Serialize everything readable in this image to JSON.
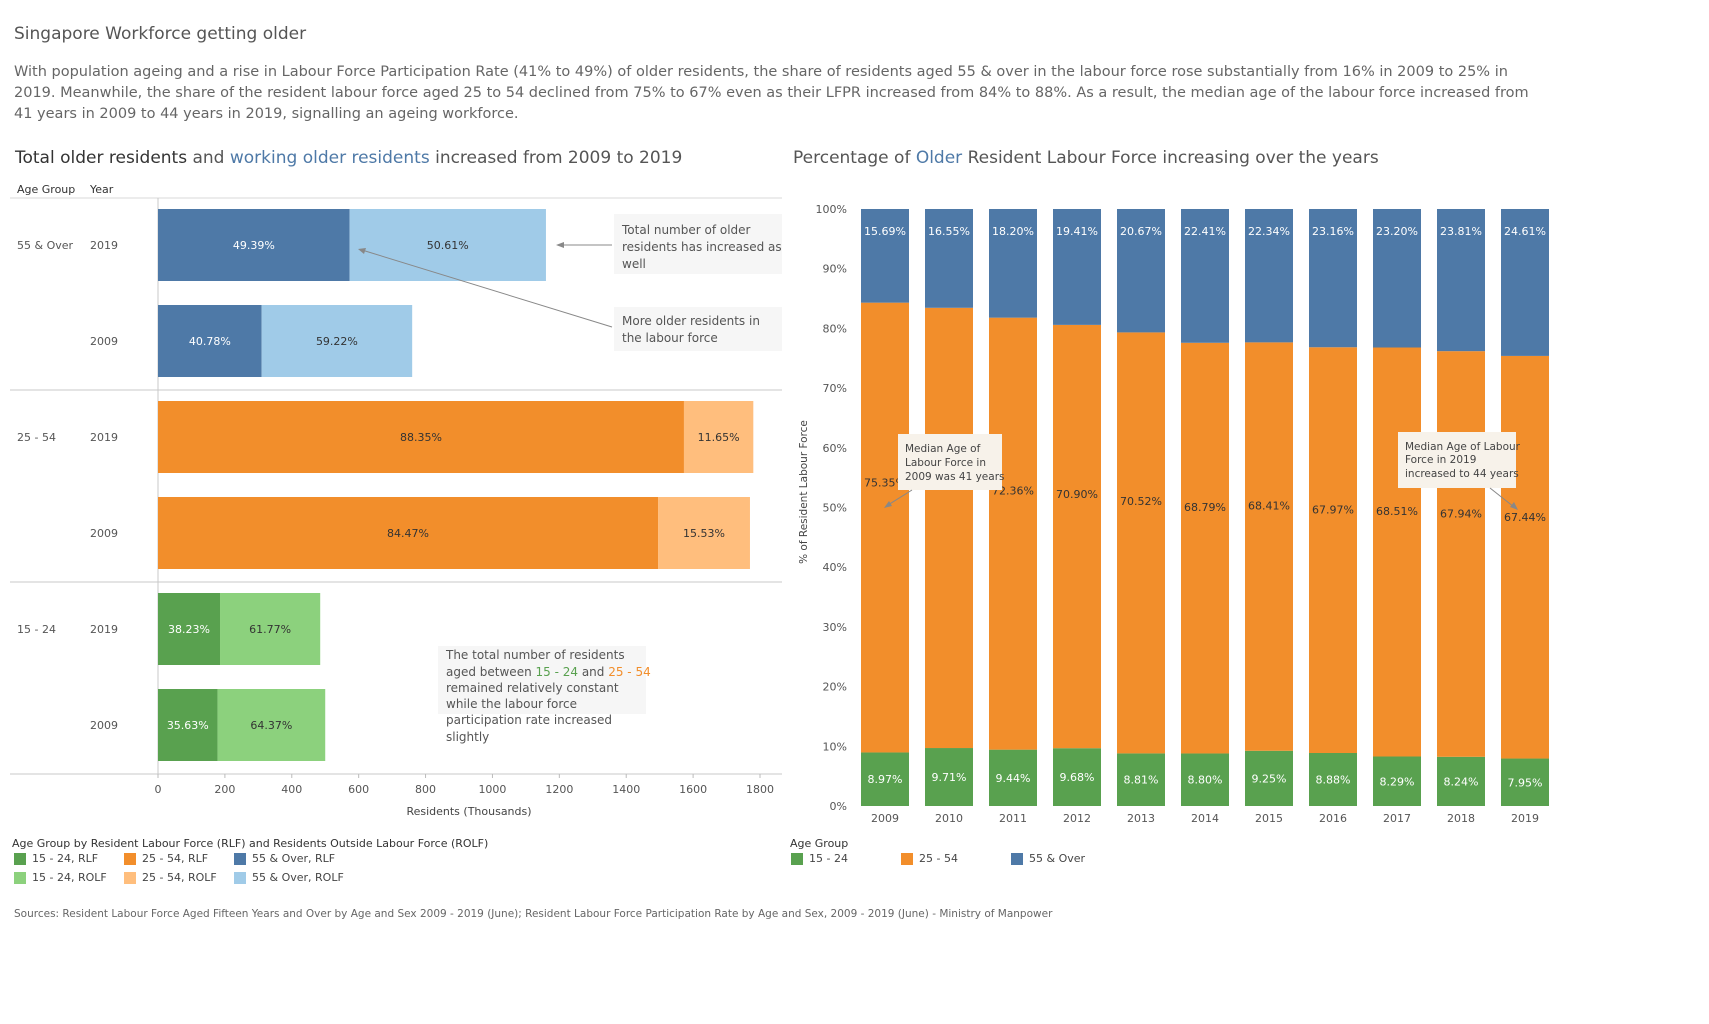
{
  "title": "Singapore Workforce getting older",
  "description": "With population ageing and a rise in Labour Force Participation Rate (41% to 49%) of older residents, the share of residents aged 55 & over in the labour force rose substantially from 16% in 2009 to 25% in 2019. Meanwhile, the share of the resident labour force aged 25 to 54 declined from 75% to 67% even as their LFPR increased from 84% to 88%. As a result, the median age of the labour force increased from 41 years in 2009 to 44 years in 2019, signalling an ageing workforce.",
  "left_title": {
    "part1": "Total older residents",
    "part2": " and ",
    "part3": "working older residents",
    "part4": " increased from 2009 to 2019"
  },
  "right_title": {
    "part1": "Percentage of ",
    "part2": "Older",
    "part3": " Resident Labour Force increasing over the years"
  },
  "column_headers": {
    "age_group": "Age Group",
    "year": "Year"
  },
  "annotations": {
    "total_older": "Total number of older residents has increased as well",
    "more_older": "More older residents in the labour force",
    "constant_line1": "The total number of residents",
    "constant_prefix": "aged between ",
    "constant_g1": "15 - 24",
    "constant_and": " and ",
    "constant_g2": "25 - 54",
    "constant_line3": "remained relatively constant",
    "constant_line4": "while the labour force",
    "constant_line5": "participation rate increased",
    "constant_line6": "slightly",
    "median_2009": "Median Age of Labour Force in 2009 was 41 years",
    "median_2019": "Median Age of Labour Force in 2019 increased to 44 years"
  },
  "left_legend": {
    "title": "Age Group by Resident Labour Force (RLF) and Residents Outside Labour Force (ROLF)",
    "items": [
      "15 - 24, RLF",
      "25 - 54, RLF",
      "55 & Over, RLF",
      "15 - 24, ROLF",
      "25 - 54, ROLF",
      "55 & Over, ROLF"
    ]
  },
  "right_legend": {
    "title": "Age Group",
    "items": [
      "15 - 24",
      "25 - 54",
      "55 & Over"
    ]
  },
  "sources": "Sources: Resident Labour Force Aged Fifteen Years and Over by Age and Sex 2009 - 2019 (June); Resident Labour Force Participation Rate by Age and Sex, 2009 - 2019 (June) - Ministry of Manpower",
  "colors": {
    "g15_rlf": "#59a14f",
    "g15_rolf": "#8cd17d",
    "g25_rlf": "#f28e2b",
    "g25_rolf": "#ffbe7d",
    "g55_rlf": "#4e79a7",
    "g55_rolf": "#a0cbe8"
  },
  "chart_data": [
    {
      "type": "bar",
      "orientation": "horizontal",
      "stacked": true,
      "xlabel": "Residents (Thousands)",
      "xlim": [
        0,
        1800
      ],
      "xticks": [
        0,
        200,
        400,
        600,
        800,
        1000,
        1200,
        1400,
        1600,
        1800
      ],
      "rows": [
        {
          "group": "55 & Over",
          "year": "2019",
          "total": 1160,
          "rlf_pct": 49.39,
          "rolf_pct": 50.61,
          "rlf_label": "49.39%",
          "rolf_label": "50.61%"
        },
        {
          "group": "55 & Over",
          "year": "2009",
          "total": 760,
          "rlf_pct": 40.78,
          "rolf_pct": 59.22,
          "rlf_label": "40.78%",
          "rolf_label": "59.22%"
        },
        {
          "group": "25 - 54",
          "year": "2019",
          "total": 1780,
          "rlf_pct": 88.35,
          "rolf_pct": 11.65,
          "rlf_label": "88.35%",
          "rolf_label": "11.65%"
        },
        {
          "group": "25 - 54",
          "year": "2009",
          "total": 1770,
          "rlf_pct": 84.47,
          "rolf_pct": 15.53,
          "rlf_label": "84.47%",
          "rolf_label": "15.53%"
        },
        {
          "group": "15 - 24",
          "year": "2019",
          "total": 485,
          "rlf_pct": 38.23,
          "rolf_pct": 61.77,
          "rlf_label": "38.23%",
          "rolf_label": "61.77%"
        },
        {
          "group": "15 - 24",
          "year": "2009",
          "total": 500,
          "rlf_pct": 35.63,
          "rolf_pct": 64.37,
          "rlf_label": "35.63%",
          "rolf_label": "64.37%"
        }
      ]
    },
    {
      "type": "bar",
      "stacked": true,
      "ylabel": "% of Resident Labour Force",
      "ylim": [
        0,
        100
      ],
      "yticks": [
        "0%",
        "10%",
        "20%",
        "30%",
        "40%",
        "50%",
        "60%",
        "70%",
        "80%",
        "90%",
        "100%"
      ],
      "categories": [
        "2009",
        "2010",
        "2011",
        "2012",
        "2013",
        "2014",
        "2015",
        "2016",
        "2017",
        "2018",
        "2019"
      ],
      "series": [
        {
          "name": "15 - 24",
          "values": [
            8.97,
            9.71,
            9.44,
            9.68,
            8.81,
            8.8,
            9.25,
            8.88,
            8.29,
            8.24,
            7.95
          ],
          "labels": [
            "8.97%",
            "9.71%",
            "9.44%",
            "9.68%",
            "8.81%",
            "8.80%",
            "9.25%",
            "8.88%",
            "8.29%",
            "8.24%",
            "7.95%"
          ]
        },
        {
          "name": "25 - 54",
          "values": [
            75.35,
            73.74,
            72.36,
            70.9,
            70.52,
            68.79,
            68.41,
            67.97,
            68.51,
            67.94,
            67.44
          ],
          "labels": [
            "75.35%",
            "73.74%",
            "72.36%",
            "70.90%",
            "70.52%",
            "68.79%",
            "68.41%",
            "67.97%",
            "68.51%",
            "67.94%",
            "67.44%"
          ]
        },
        {
          "name": "55 & Over",
          "values": [
            15.69,
            16.55,
            18.2,
            19.41,
            20.67,
            22.41,
            22.34,
            23.16,
            23.2,
            23.81,
            24.61
          ],
          "labels": [
            "15.69%",
            "16.55%",
            "18.20%",
            "19.41%",
            "20.67%",
            "22.41%",
            "22.34%",
            "23.16%",
            "23.20%",
            "23.81%",
            "24.61%"
          ]
        }
      ]
    }
  ]
}
